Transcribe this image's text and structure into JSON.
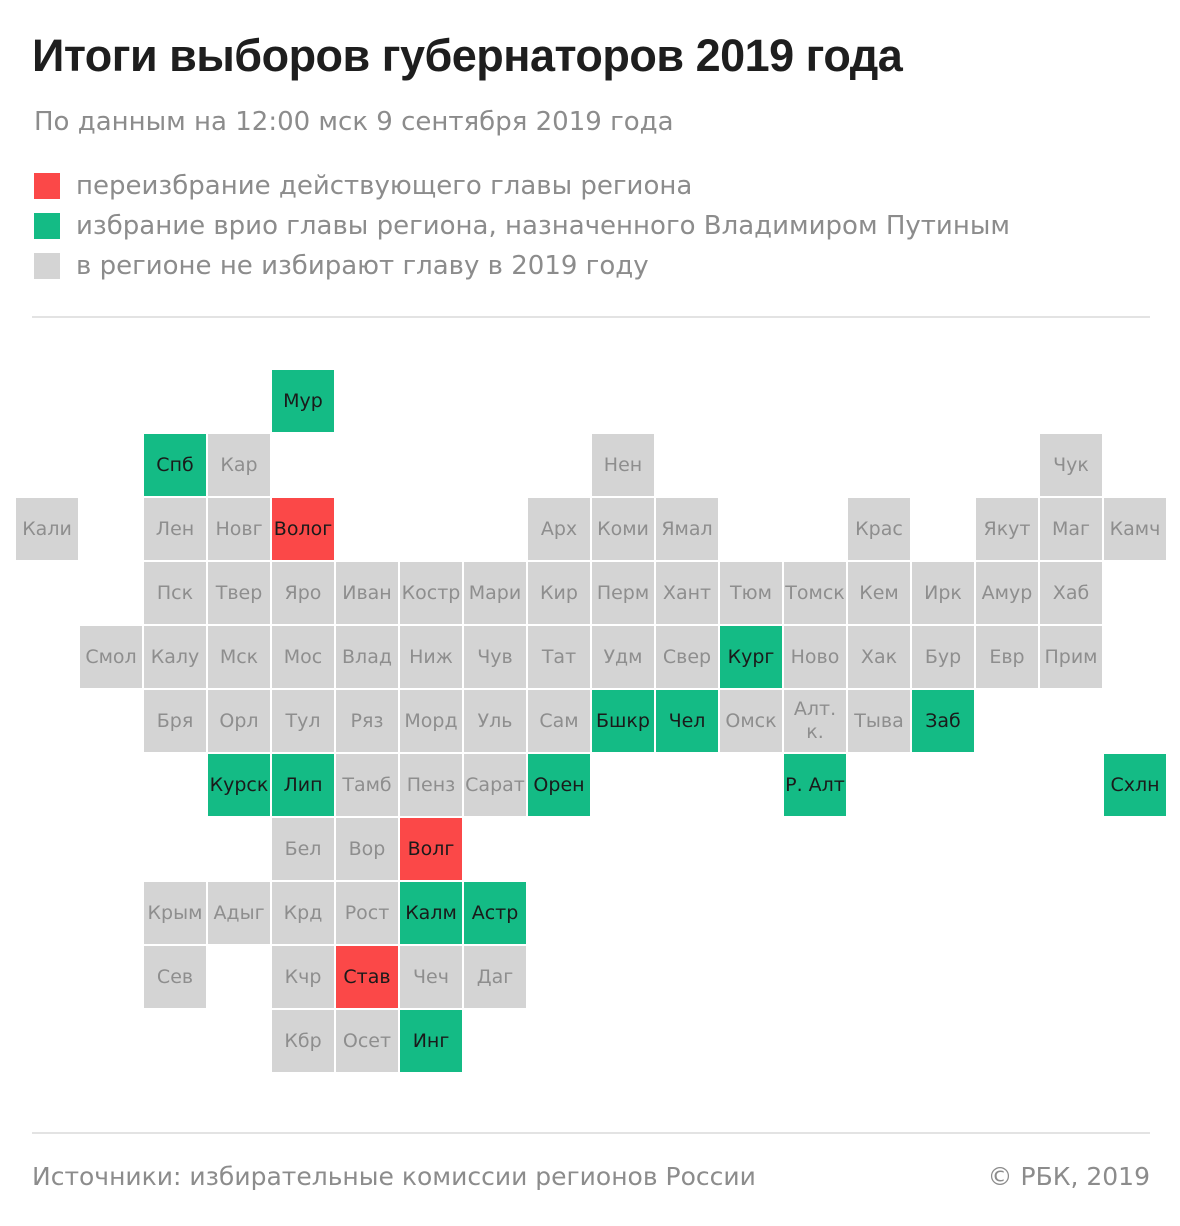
{
  "title": "Итоги выборов губернаторов 2019 года",
  "subtitle": "По данным на 12:00 мск 9 сентября 2019 года",
  "legend": [
    {
      "label": "переизбрание действующего главы региона",
      "color": "#fb4848",
      "status": "red"
    },
    {
      "label": "избрание врио главы региона, назначенного Владимиром Путиным",
      "color": "#14bb85",
      "status": "green"
    },
    {
      "label": "в регионе не избирают главу в 2019 году",
      "color": "#d4d4d4",
      "status": "none"
    }
  ],
  "colors": {
    "red": "#fb4848",
    "green": "#14bb85",
    "none": "#d4d4d4"
  },
  "regions": [
    {
      "label": "Мур",
      "col": 4,
      "row": 0,
      "status": "green"
    },
    {
      "label": "Спб",
      "col": 2,
      "row": 1,
      "status": "green"
    },
    {
      "label": "Кар",
      "col": 3,
      "row": 1,
      "status": "none"
    },
    {
      "label": "Нен",
      "col": 9,
      "row": 1,
      "status": "none"
    },
    {
      "label": "Чук",
      "col": 16,
      "row": 1,
      "status": "none"
    },
    {
      "label": "Кали",
      "col": 0,
      "row": 2,
      "status": "none"
    },
    {
      "label": "Лен",
      "col": 2,
      "row": 2,
      "status": "none"
    },
    {
      "label": "Новг",
      "col": 3,
      "row": 2,
      "status": "none"
    },
    {
      "label": "Волог",
      "col": 4,
      "row": 2,
      "status": "red"
    },
    {
      "label": "Арх",
      "col": 8,
      "row": 2,
      "status": "none"
    },
    {
      "label": "Коми",
      "col": 9,
      "row": 2,
      "status": "none"
    },
    {
      "label": "Ямал",
      "col": 10,
      "row": 2,
      "status": "none"
    },
    {
      "label": "Крас",
      "col": 13,
      "row": 2,
      "status": "none"
    },
    {
      "label": "Якут",
      "col": 15,
      "row": 2,
      "status": "none"
    },
    {
      "label": "Маг",
      "col": 16,
      "row": 2,
      "status": "none"
    },
    {
      "label": "Камч",
      "col": 17,
      "row": 2,
      "status": "none"
    },
    {
      "label": "Пск",
      "col": 2,
      "row": 3,
      "status": "none"
    },
    {
      "label": "Твер",
      "col": 3,
      "row": 3,
      "status": "none"
    },
    {
      "label": "Яро",
      "col": 4,
      "row": 3,
      "status": "none"
    },
    {
      "label": "Иван",
      "col": 5,
      "row": 3,
      "status": "none"
    },
    {
      "label": "Костр",
      "col": 6,
      "row": 3,
      "status": "none"
    },
    {
      "label": "Мари",
      "col": 7,
      "row": 3,
      "status": "none"
    },
    {
      "label": "Кир",
      "col": 8,
      "row": 3,
      "status": "none"
    },
    {
      "label": "Перм",
      "col": 9,
      "row": 3,
      "status": "none"
    },
    {
      "label": "Хант",
      "col": 10,
      "row": 3,
      "status": "none"
    },
    {
      "label": "Тюм",
      "col": 11,
      "row": 3,
      "status": "none"
    },
    {
      "label": "Томск",
      "col": 12,
      "row": 3,
      "status": "none"
    },
    {
      "label": "Кем",
      "col": 13,
      "row": 3,
      "status": "none"
    },
    {
      "label": "Ирк",
      "col": 14,
      "row": 3,
      "status": "none"
    },
    {
      "label": "Амур",
      "col": 15,
      "row": 3,
      "status": "none"
    },
    {
      "label": "Хаб",
      "col": 16,
      "row": 3,
      "status": "none"
    },
    {
      "label": "Смол",
      "col": 1,
      "row": 4,
      "status": "none"
    },
    {
      "label": "Калу",
      "col": 2,
      "row": 4,
      "status": "none"
    },
    {
      "label": "Мск",
      "col": 3,
      "row": 4,
      "status": "none"
    },
    {
      "label": "Мос",
      "col": 4,
      "row": 4,
      "status": "none"
    },
    {
      "label": "Влад",
      "col": 5,
      "row": 4,
      "status": "none"
    },
    {
      "label": "Ниж",
      "col": 6,
      "row": 4,
      "status": "none"
    },
    {
      "label": "Чув",
      "col": 7,
      "row": 4,
      "status": "none"
    },
    {
      "label": "Тат",
      "col": 8,
      "row": 4,
      "status": "none"
    },
    {
      "label": "Удм",
      "col": 9,
      "row": 4,
      "status": "none"
    },
    {
      "label": "Свер",
      "col": 10,
      "row": 4,
      "status": "none"
    },
    {
      "label": "Кург",
      "col": 11,
      "row": 4,
      "status": "green"
    },
    {
      "label": "Ново",
      "col": 12,
      "row": 4,
      "status": "none"
    },
    {
      "label": "Хак",
      "col": 13,
      "row": 4,
      "status": "none"
    },
    {
      "label": "Бур",
      "col": 14,
      "row": 4,
      "status": "none"
    },
    {
      "label": "Евр",
      "col": 15,
      "row": 4,
      "status": "none"
    },
    {
      "label": "Прим",
      "col": 16,
      "row": 4,
      "status": "none"
    },
    {
      "label": "Бря",
      "col": 2,
      "row": 5,
      "status": "none"
    },
    {
      "label": "Орл",
      "col": 3,
      "row": 5,
      "status": "none"
    },
    {
      "label": "Тул",
      "col": 4,
      "row": 5,
      "status": "none"
    },
    {
      "label": "Ряз",
      "col": 5,
      "row": 5,
      "status": "none"
    },
    {
      "label": "Морд",
      "col": 6,
      "row": 5,
      "status": "none"
    },
    {
      "label": "Уль",
      "col": 7,
      "row": 5,
      "status": "none"
    },
    {
      "label": "Сам",
      "col": 8,
      "row": 5,
      "status": "none"
    },
    {
      "label": "Бшкр",
      "col": 9,
      "row": 5,
      "status": "green"
    },
    {
      "label": "Чел",
      "col": 10,
      "row": 5,
      "status": "green"
    },
    {
      "label": "Омск",
      "col": 11,
      "row": 5,
      "status": "none"
    },
    {
      "label": "Алт. к.",
      "col": 12,
      "row": 5,
      "status": "none"
    },
    {
      "label": "Тыва",
      "col": 13,
      "row": 5,
      "status": "none"
    },
    {
      "label": "Заб",
      "col": 14,
      "row": 5,
      "status": "green"
    },
    {
      "label": "Курск",
      "col": 3,
      "row": 6,
      "status": "green"
    },
    {
      "label": "Лип",
      "col": 4,
      "row": 6,
      "status": "green"
    },
    {
      "label": "Тамб",
      "col": 5,
      "row": 6,
      "status": "none"
    },
    {
      "label": "Пенз",
      "col": 6,
      "row": 6,
      "status": "none"
    },
    {
      "label": "Сарат",
      "col": 7,
      "row": 6,
      "status": "none"
    },
    {
      "label": "Орен",
      "col": 8,
      "row": 6,
      "status": "green"
    },
    {
      "label": "Р. Алт",
      "col": 12,
      "row": 6,
      "status": "green"
    },
    {
      "label": "Схлн",
      "col": 17,
      "row": 6,
      "status": "green"
    },
    {
      "label": "Бел",
      "col": 4,
      "row": 7,
      "status": "none"
    },
    {
      "label": "Вор",
      "col": 5,
      "row": 7,
      "status": "none"
    },
    {
      "label": "Волг",
      "col": 6,
      "row": 7,
      "status": "red"
    },
    {
      "label": "Крым",
      "col": 2,
      "row": 8,
      "status": "none"
    },
    {
      "label": "Адыг",
      "col": 3,
      "row": 8,
      "status": "none"
    },
    {
      "label": "Крд",
      "col": 4,
      "row": 8,
      "status": "none"
    },
    {
      "label": "Рост",
      "col": 5,
      "row": 8,
      "status": "none"
    },
    {
      "label": "Калм",
      "col": 6,
      "row": 8,
      "status": "green"
    },
    {
      "label": "Астр",
      "col": 7,
      "row": 8,
      "status": "green"
    },
    {
      "label": "Сев",
      "col": 2,
      "row": 9,
      "status": "none"
    },
    {
      "label": "Кчр",
      "col": 4,
      "row": 9,
      "status": "none"
    },
    {
      "label": "Став",
      "col": 5,
      "row": 9,
      "status": "red"
    },
    {
      "label": "Чеч",
      "col": 6,
      "row": 9,
      "status": "none"
    },
    {
      "label": "Даг",
      "col": 7,
      "row": 9,
      "status": "none"
    },
    {
      "label": "Кбр",
      "col": 4,
      "row": 10,
      "status": "none"
    },
    {
      "label": "Осет",
      "col": 5,
      "row": 10,
      "status": "none"
    },
    {
      "label": "Инг",
      "col": 6,
      "row": 10,
      "status": "green"
    }
  ],
  "footer": {
    "source": "Источники: избирательные комиссии регионов России",
    "copyright": "© РБК, 2019"
  }
}
